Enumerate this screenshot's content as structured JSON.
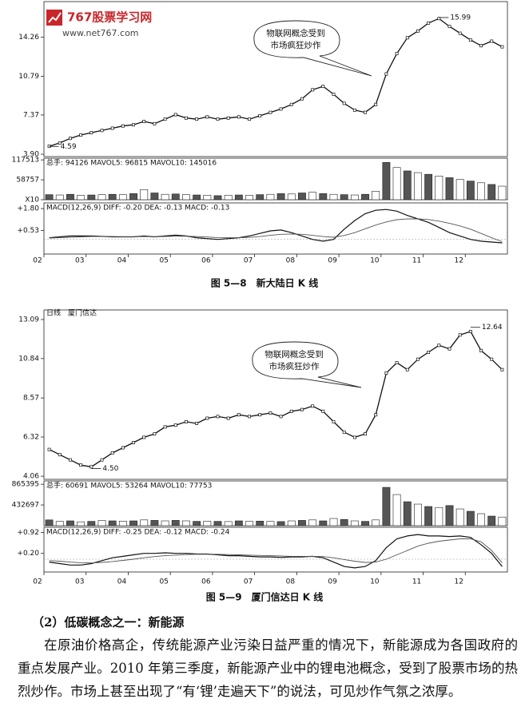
{
  "watermark": {
    "title": "767股票学习网",
    "url": "www.net767.com"
  },
  "chart_data": [
    {
      "type": "line",
      "annotation": [
        "物联网概念受到",
        "市场疯狂炒作"
      ],
      "caption": "图 5—8　新大陆日 K 线",
      "categories": [
        "02",
        null,
        null,
        null,
        "03",
        null,
        null,
        null,
        "04",
        null,
        null,
        null,
        "05",
        null,
        null,
        null,
        "06",
        null,
        null,
        null,
        "07",
        null,
        null,
        null,
        "08",
        null,
        null,
        null,
        "09",
        null,
        null,
        null,
        "10",
        null,
        null,
        null,
        "11",
        null,
        null,
        null,
        "12",
        null,
        null,
        null
      ],
      "price": {
        "ylim": [
          3.69,
          17.4
        ],
        "yticks": [
          {
            "value": 3.9,
            "label": "3.90"
          },
          7.37,
          10.79,
          14.26
        ],
        "low": 4.59,
        "high": 15.99,
        "values": [
          4.6,
          4.9,
          5.3,
          5.6,
          5.8,
          6.0,
          6.2,
          6.4,
          6.5,
          6.8,
          6.6,
          7.0,
          7.4,
          7.1,
          7.0,
          7.2,
          7.0,
          7.1,
          7.2,
          7.0,
          7.3,
          7.6,
          7.9,
          8.3,
          8.8,
          9.6,
          9.9,
          9.2,
          8.4,
          7.8,
          7.6,
          8.3,
          11.0,
          12.8,
          14.2,
          14.8,
          15.5,
          15.9,
          15.2,
          14.6,
          14.0,
          13.5,
          13.9,
          13.4
        ]
      },
      "volume": {
        "legend": "总手: 94126  MAVOL5: 96815  MAVOL10: 145016",
        "ylim": [
          0,
          122600
        ],
        "yticks": [
          {
            "value": 0,
            "label": "X10"
          },
          58757,
          117513
        ],
        "values": [
          15000,
          14000,
          16000,
          13000,
          14000,
          15000,
          16000,
          15000,
          18000,
          30000,
          20000,
          16000,
          17000,
          15000,
          14000,
          13000,
          12000,
          13000,
          14000,
          13000,
          15000,
          16000,
          18000,
          17000,
          20000,
          22000,
          18000,
          16000,
          15000,
          14000,
          16000,
          25000,
          110000,
          95000,
          85000,
          80000,
          75000,
          70000,
          65000,
          60000,
          55000,
          50000,
          45000,
          40000
        ]
      },
      "macd": {
        "legend": "MACD(12,26,9)  DIFF: -0.20  DEA: -0.13  MACD: -0.13",
        "ylim": [
          -0.85,
          2.13
        ],
        "yticks": [
          {
            "value": 0.53,
            "label": "+0.53"
          },
          {
            "value": 1.8,
            "label": "+1.80"
          }
        ],
        "diff": [
          0.1,
          0.15,
          0.2,
          0.2,
          0.2,
          0.18,
          0.15,
          0.15,
          0.15,
          0.2,
          0.15,
          0.2,
          0.25,
          0.2,
          0.1,
          0.05,
          0.0,
          0.05,
          0.1,
          0.2,
          0.35,
          0.5,
          0.55,
          0.4,
          0.2,
          0.0,
          -0.1,
          0.0,
          0.6,
          1.1,
          1.5,
          1.7,
          1.75,
          1.65,
          1.4,
          1.2,
          1.0,
          0.7,
          0.4,
          0.2,
          0.0,
          -0.1,
          -0.15,
          -0.2
        ],
        "dea": [
          0.08,
          0.1,
          0.13,
          0.15,
          0.17,
          0.17,
          0.17,
          0.16,
          0.16,
          0.17,
          0.16,
          0.17,
          0.19,
          0.19,
          0.17,
          0.14,
          0.11,
          0.1,
          0.1,
          0.12,
          0.17,
          0.24,
          0.3,
          0.32,
          0.3,
          0.24,
          0.17,
          0.13,
          0.23,
          0.4,
          0.62,
          0.84,
          1.02,
          1.15,
          1.2,
          1.2,
          1.16,
          1.07,
          0.94,
          0.79,
          0.6,
          0.35,
          0.1,
          -0.13
        ]
      }
    },
    {
      "type": "line",
      "title": "日线　厦门信达",
      "annotation": [
        "物联网概念受到",
        "市场疯狂炒作"
      ],
      "caption": "图 5—9　厦门信达日 K 线",
      "categories": [
        "02",
        null,
        null,
        null,
        "03",
        null,
        null,
        null,
        "04",
        null,
        null,
        null,
        "05",
        null,
        null,
        null,
        "06",
        null,
        null,
        null,
        "07",
        null,
        null,
        null,
        "08",
        null,
        null,
        null,
        "09",
        null,
        null,
        null,
        "10",
        null,
        null,
        null,
        "11",
        null,
        null,
        null,
        "12",
        null,
        null,
        null
      ],
      "price": {
        "ylim": [
          3.88,
          13.64
        ],
        "yticks": [
          4.06,
          6.32,
          8.57,
          10.84,
          13.09
        ],
        "low": {
          "value": 4.5,
          "label": "4.50"
        },
        "high": 12.64,
        "values": [
          5.6,
          5.3,
          5.0,
          4.7,
          4.6,
          5.0,
          5.4,
          5.7,
          6.0,
          6.3,
          6.5,
          6.9,
          7.0,
          7.2,
          7.1,
          7.4,
          7.5,
          7.4,
          7.6,
          7.5,
          7.6,
          7.7,
          7.5,
          7.8,
          7.9,
          8.1,
          7.8,
          7.2,
          6.6,
          6.3,
          6.5,
          7.6,
          10.0,
          10.6,
          10.2,
          10.8,
          11.2,
          11.6,
          11.4,
          12.2,
          12.4,
          11.3,
          10.8,
          10.2
        ]
      },
      "volume": {
        "legend": "总手: 60691  MAVOL5: 53264  MAVOL10: 77753",
        "ylim": [
          0,
          934600
        ],
        "yticks": [
          432697,
          865395
        ],
        "values": [
          120000,
          90000,
          100000,
          80000,
          90000,
          110000,
          100000,
          95000,
          100000,
          120000,
          110000,
          100000,
          110000,
          100000,
          90000,
          95000,
          90000,
          85000,
          100000,
          90000,
          95000,
          90000,
          85000,
          100000,
          110000,
          120000,
          100000,
          150000,
          130000,
          100000,
          90000,
          120000,
          800000,
          650000,
          500000,
          450000,
          400000,
          380000,
          420000,
          350000,
          300000,
          250000,
          200000,
          180000
        ]
      },
      "macd": {
        "legend": "MACD(12,26,9)  DIFF: -0.25  DEA: -0.12  MACD: -0.24",
        "ylim": [
          -0.44,
          1.1
        ],
        "yticks": [
          {
            "value": 0.2,
            "label": "+0.20"
          },
          {
            "value": 0.92,
            "label": "+0.92"
          }
        ],
        "diff": [
          -0.1,
          -0.15,
          -0.2,
          -0.2,
          -0.15,
          -0.05,
          0.05,
          0.1,
          0.15,
          0.2,
          0.2,
          0.22,
          0.2,
          0.2,
          0.18,
          0.18,
          0.15,
          0.12,
          0.12,
          0.1,
          0.08,
          0.08,
          0.06,
          0.08,
          0.08,
          0.1,
          0.05,
          -0.1,
          -0.25,
          -0.3,
          -0.25,
          -0.05,
          0.4,
          0.7,
          0.8,
          0.85,
          0.8,
          0.8,
          0.78,
          0.8,
          0.75,
          0.5,
          0.2,
          -0.25
        ],
        "dea": [
          -0.05,
          -0.07,
          -0.1,
          -0.12,
          -0.13,
          -0.11,
          -0.08,
          -0.04,
          0.0,
          0.05,
          0.09,
          0.12,
          0.14,
          0.16,
          0.17,
          0.17,
          0.17,
          0.16,
          0.15,
          0.14,
          0.13,
          0.12,
          0.11,
          0.1,
          0.1,
          0.1,
          0.09,
          0.05,
          -0.01,
          -0.07,
          -0.11,
          -0.1,
          0.0,
          0.15,
          0.3,
          0.45,
          0.55,
          0.62,
          0.66,
          0.7,
          0.7,
          0.6,
          0.3,
          -0.12
        ]
      }
    }
  ],
  "section": {
    "heading": "（2）低碳概念之一：新能源",
    "paragraph": "在原油价格高企，传统能源产业污染日益严重的情况下，新能源成为各国政府的重点发展产业。2010 年第三季度，新能源产业中的锂电池概念，受到了股票市场的热烈炒作。市场上甚至出现了“有‘锂’走遍天下”的说法，可见炒作气氛之浓厚。"
  }
}
